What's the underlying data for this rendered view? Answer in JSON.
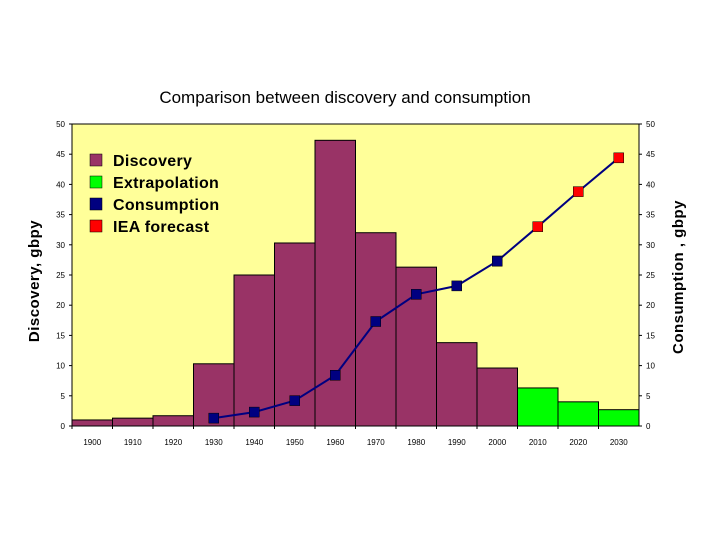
{
  "chart_data": {
    "type": "bar",
    "title": "Comparison between discovery and consumption",
    "ylabel": "Discovery, gbpy",
    "y2label": "Consumption , gbpy",
    "ylim": [
      0,
      50
    ],
    "y2lim": [
      0,
      50
    ],
    "yticks": [
      "0",
      "5",
      "10",
      "15",
      "20",
      "25",
      "30",
      "35",
      "40",
      "45",
      "50"
    ],
    "categories": [
      "1900",
      "1910",
      "1920",
      "1930",
      "1940",
      "1950",
      "1960",
      "1970",
      "1980",
      "1990",
      "2000",
      "2010",
      "2020",
      "2030"
    ],
    "legend_position": "top-left",
    "series": [
      {
        "name": "Discovery",
        "kind": "bar",
        "color": "#993366",
        "values": [
          1.0,
          1.3,
          1.7,
          10.3,
          25.0,
          30.3,
          47.3,
          32.0,
          26.3,
          13.8,
          9.6,
          null,
          null,
          null
        ]
      },
      {
        "name": "Extrapolation",
        "kind": "bar",
        "color": "#00ff00",
        "values": [
          null,
          null,
          null,
          null,
          null,
          null,
          null,
          null,
          null,
          null,
          null,
          6.3,
          4.0,
          2.7
        ]
      },
      {
        "name": "Consumption",
        "kind": "line",
        "color": "#000080",
        "values": [
          null,
          null,
          null,
          1.3,
          2.3,
          4.2,
          8.4,
          17.3,
          21.8,
          23.2,
          27.3,
          null,
          null,
          null
        ]
      },
      {
        "name": "IEA forecast",
        "kind": "line",
        "color": "#ff0000",
        "values": [
          null,
          null,
          null,
          null,
          null,
          null,
          null,
          null,
          null,
          null,
          27.3,
          33.0,
          38.8,
          44.4
        ]
      }
    ],
    "colors": {
      "plot_background": "#ffff99",
      "line_color": "#000080"
    }
  }
}
